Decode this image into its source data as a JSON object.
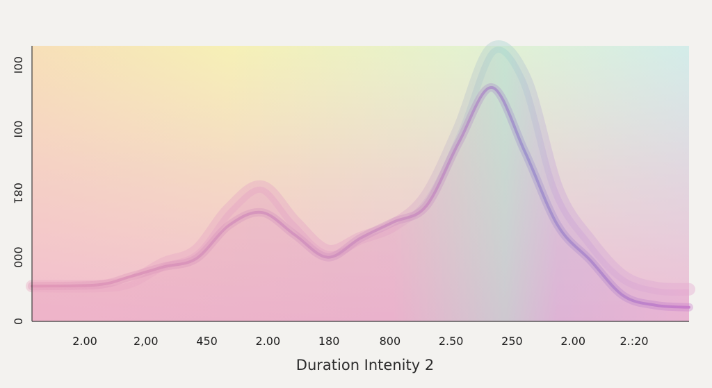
{
  "chart_data": {
    "type": "area",
    "title": "",
    "xlabel": "Duration Intenity 2",
    "ylabel": "",
    "x_tick_labels": [
      "2.00",
      "2,00",
      "450",
      "2.00",
      "180",
      "800",
      "2.50",
      "250",
      "2.00",
      "2.:20"
    ],
    "y_tick_labels": [
      "0",
      "000",
      "081",
      "00I",
      "00I"
    ],
    "ylim": [
      0,
      4.3
    ],
    "x": [
      0,
      1,
      1.5,
      2,
      2.5,
      3,
      3.5,
      4,
      4.5,
      5,
      5.5,
      6,
      6.5,
      7,
      7.5,
      8,
      8.5,
      9,
      9.5,
      10
    ],
    "series": [
      {
        "values": [
          0.55,
          0.55,
          0.62,
          0.9,
          1.1,
          1.75,
          2.1,
          1.55,
          1.1,
          1.3,
          1.5,
          1.95,
          3.0,
          4.25,
          3.8,
          2.05,
          1.25,
          0.7,
          0.52,
          0.5
        ]
      },
      {
        "values": [
          0.55,
          0.57,
          0.7,
          0.85,
          0.98,
          1.5,
          1.7,
          1.35,
          1.0,
          1.3,
          1.55,
          1.8,
          2.8,
          3.65,
          2.65,
          1.5,
          0.95,
          0.4,
          0.25,
          0.22
        ]
      }
    ],
    "grid": false,
    "legend": "none",
    "colors": {
      "band_fill": "#e7a7c4",
      "peak_fill": "#a9d7cf",
      "line": "#b083c8",
      "background_top_left": "#f7f2b4",
      "background_top_right": "#c9ebe4",
      "background_bottom": "#f3bfd5"
    }
  }
}
